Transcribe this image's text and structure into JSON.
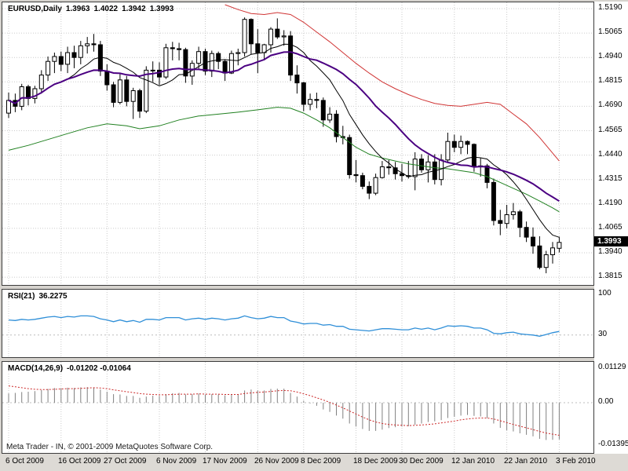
{
  "title": {
    "symbol": "EURUSD,Daily",
    "open": "1.3963",
    "high": "1.4022",
    "low": "1.3942",
    "close": "1.3993"
  },
  "footer": {
    "copyright": "Meta Trader - IN, © 2001-2009 MetaQuotes Software Corp."
  },
  "colors": {
    "bull_body": "#FFFFFF",
    "bear_body": "#000000",
    "candle_outline": "#000000",
    "ma_fast": "#000000",
    "ma_slow": "#4B0082",
    "upper_band": "#D03434",
    "lower_band": "#208020",
    "rsi_line": "#2F8FD8",
    "macd_histogram": "#808080",
    "macd_signal": "#CC2929",
    "badge_bg": "#000000",
    "badge_text": "#FFFFFF"
  },
  "chart_data": [
    {
      "type": "candlestick",
      "title": "EURUSD,Daily",
      "last_price": 1.3993,
      "last_price_text": "1.3993",
      "ylim": [
        1.3767,
        1.5215
      ],
      "y_ticks": [
        "1.5190",
        "1.5065",
        "1.4940",
        "1.4815",
        "1.4690",
        "1.4565",
        "1.4440",
        "1.4315",
        "1.4190",
        "1.4065",
        "1.3940",
        "1.3815"
      ],
      "x_ticks": [
        {
          "index": 0,
          "label": "6 Oct 2009"
        },
        {
          "index": 8,
          "label": "16 Oct 2009"
        },
        {
          "index": 15,
          "label": "27 Oct 2009"
        },
        {
          "index": 23,
          "label": "6 Nov 2009"
        },
        {
          "index": 30,
          "label": "17 Nov 2009"
        },
        {
          "index": 38,
          "label": "26 Nov 2009"
        },
        {
          "index": 45,
          "label": "8 Dec 2009"
        },
        {
          "index": 53,
          "label": "18 Dec 2009"
        },
        {
          "index": 60,
          "label": "30 Dec 2009"
        },
        {
          "index": 68,
          "label": "12 Jan 2010"
        },
        {
          "index": 76,
          "label": "22 Jan 2010"
        },
        {
          "index": 84,
          "label": "3 Feb 2010"
        }
      ],
      "ohlc": [
        [
          1.4655,
          1.476,
          1.463,
          1.472
        ],
        [
          1.472,
          1.4755,
          1.466,
          1.469
        ],
        [
          1.469,
          1.4805,
          1.467,
          1.479
        ],
        [
          1.479,
          1.48,
          1.4695,
          1.473
        ],
        [
          1.473,
          1.4795,
          1.4705,
          1.478
        ],
        [
          1.478,
          1.4875,
          1.4755,
          1.485
        ],
        [
          1.485,
          1.4945,
          1.482,
          1.492
        ],
        [
          1.492,
          1.4965,
          1.486,
          1.4945
        ],
        [
          1.4945,
          1.497,
          1.487,
          1.4905
        ],
        [
          1.4905,
          1.4995,
          1.486,
          1.4965
        ],
        [
          1.4965,
          1.5,
          1.4885,
          1.494
        ],
        [
          1.494,
          1.5025,
          1.4905,
          1.5
        ],
        [
          1.5,
          1.5045,
          1.496,
          1.501
        ],
        [
          1.501,
          1.506,
          1.497,
          1.5005
        ],
        [
          1.5005,
          1.5025,
          1.4845,
          1.487
        ],
        [
          1.487,
          1.4905,
          1.477,
          1.48
        ],
        [
          1.48,
          1.4815,
          1.4685,
          1.471
        ],
        [
          1.471,
          1.4855,
          1.47,
          1.4825
        ],
        [
          1.4825,
          1.4845,
          1.469,
          1.4715
        ],
        [
          1.4715,
          1.4785,
          1.4625,
          1.477
        ],
        [
          1.477,
          1.478,
          1.463,
          1.4665
        ],
        [
          1.4665,
          1.4895,
          1.4655,
          1.4875
        ],
        [
          1.4875,
          1.492,
          1.4815,
          1.4875
        ],
        [
          1.4875,
          1.4915,
          1.48,
          1.484
        ],
        [
          1.484,
          1.501,
          1.483,
          1.499
        ],
        [
          1.499,
          1.502,
          1.4925,
          1.4985
        ],
        [
          1.4985,
          1.5015,
          1.4925,
          1.498
        ],
        [
          1.498,
          1.499,
          1.481,
          1.4845
        ],
        [
          1.4845,
          1.4925,
          1.48,
          1.491
        ],
        [
          1.491,
          1.4995,
          1.488,
          1.497
        ],
        [
          1.497,
          1.4985,
          1.485,
          1.487
        ],
        [
          1.487,
          1.4975,
          1.484,
          1.496
        ],
        [
          1.496,
          1.497,
          1.488,
          1.492
        ],
        [
          1.492,
          1.493,
          1.482,
          1.486
        ],
        [
          1.486,
          1.4975,
          1.4855,
          1.496
        ],
        [
          1.496,
          1.4985,
          1.49,
          1.4965
        ],
        [
          1.4965,
          1.5145,
          1.4945,
          1.5135
        ],
        [
          1.5135,
          1.514,
          1.4955,
          1.501
        ],
        [
          1.501,
          1.5085,
          1.486,
          1.4965
        ],
        [
          1.4965,
          1.501,
          1.4925,
          1.5005
        ],
        [
          1.5005,
          1.5095,
          1.4965,
          1.5085
        ],
        [
          1.5085,
          1.514,
          1.5035,
          1.5045
        ],
        [
          1.5045,
          1.508,
          1.5,
          1.505
        ],
        [
          1.505,
          1.5075,
          1.482,
          1.485
        ],
        [
          1.485,
          1.49,
          1.4755,
          1.481
        ],
        [
          1.481,
          1.4815,
          1.4665,
          1.47
        ],
        [
          1.47,
          1.4755,
          1.467,
          1.4725
        ],
        [
          1.4725,
          1.476,
          1.468,
          1.472
        ],
        [
          1.472,
          1.4735,
          1.4585,
          1.462
        ],
        [
          1.462,
          1.4685,
          1.4605,
          1.465
        ],
        [
          1.465,
          1.467,
          1.4505,
          1.4535
        ],
        [
          1.4535,
          1.459,
          1.4495,
          1.453
        ],
        [
          1.453,
          1.4545,
          1.432,
          1.434
        ],
        [
          1.434,
          1.4415,
          1.43,
          1.4335
        ],
        [
          1.4335,
          1.435,
          1.4265,
          1.428
        ],
        [
          1.428,
          1.4305,
          1.4215,
          1.4245
        ],
        [
          1.4245,
          1.4345,
          1.4235,
          1.4325
        ],
        [
          1.4325,
          1.441,
          1.432,
          1.438
        ],
        [
          1.438,
          1.4415,
          1.434,
          1.4375
        ],
        [
          1.4375,
          1.4405,
          1.4315,
          1.4345
        ],
        [
          1.4345,
          1.4395,
          1.4305,
          1.4335
        ],
        [
          1.4335,
          1.441,
          1.432,
          1.433
        ],
        [
          1.433,
          1.4455,
          1.426,
          1.442
        ],
        [
          1.442,
          1.4445,
          1.435,
          1.4365
        ],
        [
          1.4365,
          1.444,
          1.43,
          1.4405
        ],
        [
          1.4405,
          1.4445,
          1.429,
          1.4315
        ],
        [
          1.4315,
          1.4445,
          1.4285,
          1.4415
        ],
        [
          1.4415,
          1.4555,
          1.4405,
          1.451
        ],
        [
          1.451,
          1.4545,
          1.4455,
          1.448
        ],
        [
          1.448,
          1.454,
          1.4445,
          1.451
        ],
        [
          1.451,
          1.4515,
          1.4445,
          1.4495
        ],
        [
          1.4495,
          1.45,
          1.4355,
          1.4385
        ],
        [
          1.4385,
          1.4425,
          1.433,
          1.4385
        ],
        [
          1.4385,
          1.4395,
          1.427,
          1.43
        ],
        [
          1.43,
          1.432,
          1.408,
          1.4105
        ],
        [
          1.4105,
          1.416,
          1.403,
          1.409
        ],
        [
          1.409,
          1.4185,
          1.4065,
          1.4135
        ],
        [
          1.4135,
          1.4195,
          1.411,
          1.415
        ],
        [
          1.415,
          1.416,
          1.402,
          1.407
        ],
        [
          1.407,
          1.41,
          1.3995,
          1.402
        ],
        [
          1.402,
          1.407,
          1.3935,
          1.3975
        ],
        [
          1.3975,
          1.4025,
          1.3855,
          1.3865
        ],
        [
          1.3865,
          1.395,
          1.3835,
          1.393
        ],
        [
          1.393,
          1.3995,
          1.3885,
          1.3965
        ],
        [
          1.3963,
          1.4022,
          1.3942,
          1.3993
        ]
      ],
      "overlays": [
        {
          "name": "upper-band",
          "method": "points",
          "color": "#D03434",
          "width": 1,
          "points": [
            [
              33,
              1.521
            ],
            [
              35,
              1.5185
            ],
            [
              37,
              1.5165
            ],
            [
              39,
              1.516
            ],
            [
              41,
              1.517
            ],
            [
              43,
              1.516
            ],
            [
              45,
              1.512
            ],
            [
              47,
              1.507
            ],
            [
              49,
              1.502
            ],
            [
              51,
              1.4965
            ],
            [
              53,
              1.491
            ],
            [
              55,
              1.486
            ],
            [
              57,
              1.4815
            ],
            [
              59,
              1.478
            ],
            [
              61,
              1.475
            ],
            [
              63,
              1.4725
            ],
            [
              65,
              1.4705
            ],
            [
              67,
              1.4695
            ],
            [
              69,
              1.469
            ],
            [
              71,
              1.47
            ],
            [
              73,
              1.471
            ],
            [
              75,
              1.47
            ],
            [
              77,
              1.465
            ],
            [
              79,
              1.46
            ],
            [
              81,
              1.453
            ],
            [
              83,
              1.445
            ],
            [
              84,
              1.441
            ]
          ]
        },
        {
          "name": "lower-band",
          "method": "points",
          "color": "#208020",
          "width": 1,
          "points": [
            [
              0,
              1.4465
            ],
            [
              3,
              1.449
            ],
            [
              6,
              1.452
            ],
            [
              9,
              1.455
            ],
            [
              12,
              1.458
            ],
            [
              15,
              1.46
            ],
            [
              18,
              1.459
            ],
            [
              20,
              1.4575
            ],
            [
              23,
              1.459
            ],
            [
              26,
              1.462
            ],
            [
              29,
              1.464
            ],
            [
              32,
              1.465
            ],
            [
              35,
              1.466
            ],
            [
              38,
              1.4672
            ],
            [
              41,
              1.4685
            ],
            [
              43,
              1.468
            ],
            [
              45,
              1.4655
            ],
            [
              47,
              1.462
            ],
            [
              49,
              1.458
            ],
            [
              51,
              1.453
            ],
            [
              53,
              1.448
            ],
            [
              55,
              1.4445
            ],
            [
              57,
              1.4425
            ],
            [
              59,
              1.441
            ],
            [
              61,
              1.4395
            ],
            [
              63,
              1.4385
            ],
            [
              65,
              1.4375
            ],
            [
              67,
              1.437
            ],
            [
              69,
              1.436
            ],
            [
              71,
              1.435
            ],
            [
              73,
              1.433
            ],
            [
              75,
              1.43
            ],
            [
              77,
              1.427
            ],
            [
              79,
              1.424
            ],
            [
              81,
              1.4205
            ],
            [
              83,
              1.417
            ],
            [
              84,
              1.415
            ]
          ]
        },
        {
          "name": "ma-fast",
          "method": "sma",
          "period": 10,
          "color": "#000000",
          "width": 1
        },
        {
          "name": "ma-slow",
          "method": "sma",
          "period": 20,
          "color": "#4B0082",
          "width": 2
        }
      ]
    },
    {
      "type": "line",
      "name": "RSI(21)",
      "value_text": "36.2275",
      "current": 36.2275,
      "ylim": [
        0,
        100
      ],
      "levels": [
        30
      ],
      "y_tick_labels": [
        {
          "text": "100",
          "value": 100
        },
        {
          "text": "30",
          "value": 30
        }
      ],
      "color": "#2F8FD8",
      "values": [
        56,
        55,
        57,
        56,
        57,
        59,
        61,
        62,
        60,
        62,
        61,
        63,
        63,
        62,
        58,
        56,
        53,
        56,
        53,
        55,
        52,
        57,
        57,
        56,
        60,
        60,
        60,
        56,
        58,
        59,
        57,
        59,
        58,
        56,
        58,
        59,
        63,
        60,
        58,
        59,
        62,
        60,
        60,
        54,
        52,
        49,
        50,
        50,
        47,
        48,
        45,
        45,
        40,
        39,
        38,
        37,
        39,
        41,
        41,
        40,
        39,
        39,
        42,
        40,
        42,
        39,
        42,
        46,
        45,
        46,
        45,
        42,
        42,
        39,
        33,
        32,
        34,
        35,
        32,
        31,
        30,
        28,
        31,
        34,
        36.2275
      ]
    },
    {
      "type": "macd",
      "name": "MACD(14,26,9)",
      "values_text": "-0.01202 -0.01064",
      "current_macd": -0.01202,
      "current_signal": -0.01064,
      "y_tick_labels": [
        {
          "text": "0.01129",
          "value": 0.01129
        },
        {
          "text": "0.00",
          "value": 0
        },
        {
          "text": "-0.01395",
          "value": -0.01395
        }
      ],
      "hist_color": "#808080",
      "signal_color": "#CC2929",
      "histogram": [
        0.003,
        0.0032,
        0.0035,
        0.0036,
        0.0038,
        0.0041,
        0.0045,
        0.0048,
        0.0047,
        0.0049,
        0.0048,
        0.005,
        0.0051,
        0.005,
        0.0043,
        0.0036,
        0.0028,
        0.0027,
        0.0022,
        0.0022,
        0.0016,
        0.002,
        0.0023,
        0.0022,
        0.0028,
        0.0031,
        0.0032,
        0.0027,
        0.0028,
        0.003,
        0.0027,
        0.0028,
        0.0027,
        0.0024,
        0.0026,
        0.0028,
        0.004,
        0.0043,
        0.004,
        0.004,
        0.0045,
        0.0046,
        0.0046,
        0.0032,
        0.002,
        0.0006,
        -0.0002,
        -0.001,
        -0.0022,
        -0.003,
        -0.0042,
        -0.0052,
        -0.0068,
        -0.0078,
        -0.0086,
        -0.0092,
        -0.0092,
        -0.0088,
        -0.0083,
        -0.008,
        -0.0078,
        -0.0077,
        -0.0072,
        -0.0068,
        -0.0063,
        -0.0061,
        -0.0057,
        -0.005,
        -0.0046,
        -0.0042,
        -0.004,
        -0.0043,
        -0.0045,
        -0.005,
        -0.0068,
        -0.0082,
        -0.009,
        -0.0094,
        -0.01,
        -0.0105,
        -0.011,
        -0.0118,
        -0.0122,
        -0.0121,
        -0.01202
      ],
      "signal": [
        0.0055,
        0.0052,
        0.0049,
        0.0046,
        0.0044,
        0.0043,
        0.0043,
        0.0044,
        0.0045,
        0.0046,
        0.0046,
        0.0047,
        0.0048,
        0.0049,
        0.0048,
        0.0046,
        0.0042,
        0.0039,
        0.0036,
        0.0033,
        0.003,
        0.0028,
        0.0027,
        0.0026,
        0.0026,
        0.0027,
        0.0028,
        0.0028,
        0.0028,
        0.0029,
        0.0028,
        0.0028,
        0.0028,
        0.0027,
        0.0027,
        0.0027,
        0.003,
        0.0032,
        0.0034,
        0.0035,
        0.0037,
        0.0039,
        0.004,
        0.0039,
        0.0035,
        0.0029,
        0.0023,
        0.0016,
        0.0009,
        0.0001,
        -0.0008,
        -0.0017,
        -0.0027,
        -0.0037,
        -0.0047,
        -0.0056,
        -0.0063,
        -0.0068,
        -0.0071,
        -0.0073,
        -0.0074,
        -0.0075,
        -0.0074,
        -0.0073,
        -0.0071,
        -0.0069,
        -0.0066,
        -0.0063,
        -0.006,
        -0.0056,
        -0.0053,
        -0.0051,
        -0.005,
        -0.005,
        -0.0053,
        -0.0059,
        -0.0065,
        -0.0071,
        -0.0077,
        -0.0082,
        -0.0088,
        -0.0094,
        -0.0099,
        -0.0103,
        -0.01064
      ]
    }
  ]
}
